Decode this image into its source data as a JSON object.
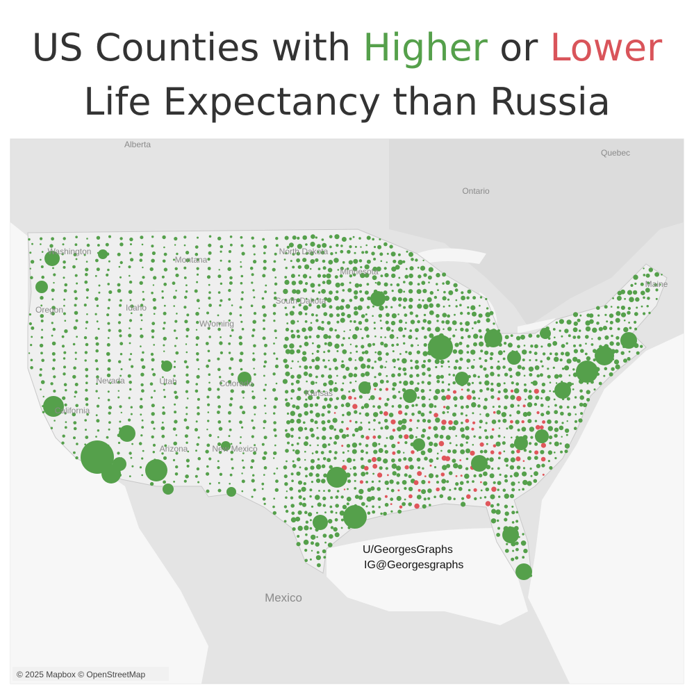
{
  "header": {
    "title_start": "US Counties with",
    "title_higher": "Higher",
    "title_or": "or",
    "title_lower": "Lower",
    "title_line2": "Life Expectancy than Russia"
  },
  "map": {
    "labels": [
      "Alberta",
      "Quebec",
      "Ontario",
      "Washington",
      "Montana",
      "North Dakota",
      "Minnesota",
      "South Dakota",
      "Oregon",
      "Idaho",
      "Wyoming",
      "Nevada",
      "Utah",
      "Colorado",
      "California",
      "Arizona",
      "New Mexico",
      "Kansas",
      "Mexico",
      "Maine"
    ],
    "credit_line1": "U/GeorgesGraphs",
    "credit_line2": "IG@Georgesgraphs",
    "attribution": "© 2025 Mapbox © OpenStreetMap"
  }
}
